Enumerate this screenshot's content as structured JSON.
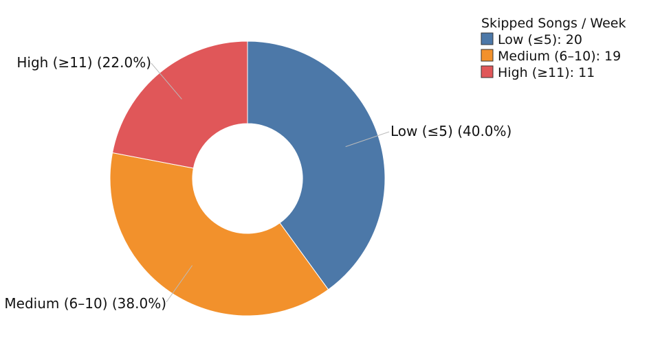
{
  "chart_data": {
    "type": "pie",
    "donut": true,
    "title": "",
    "categories": [
      "Low (≤5)",
      "Medium (6–10)",
      "High (≥11)"
    ],
    "values": [
      20,
      19,
      11
    ],
    "percent_labels": [
      "Low (≤5) (40.0%)",
      "Medium (6–10) (38.0%)",
      "High (≥11) (22.0%)"
    ],
    "colors": [
      "#4c78a8",
      "#f2912c",
      "#e05759"
    ],
    "legend": {
      "title": "Skipped Songs / Week",
      "placement": "top-right",
      "entries": [
        "Low (≤5): 20",
        "Medium (6–10): 19",
        "High (≥11): 11"
      ]
    }
  }
}
